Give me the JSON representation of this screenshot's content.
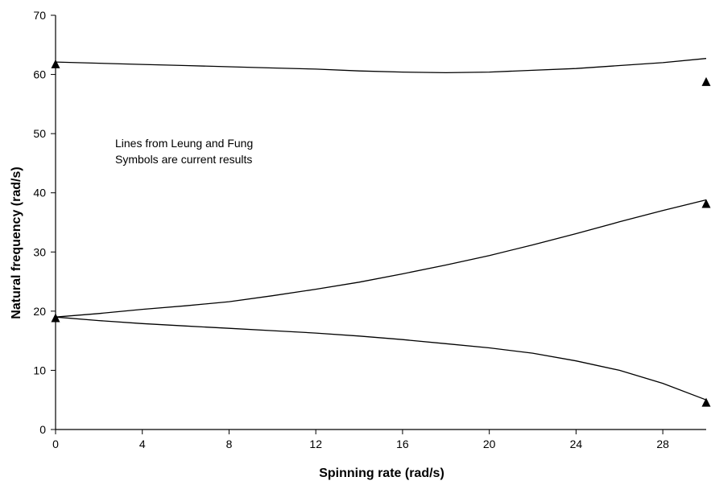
{
  "chart_data": {
    "type": "line",
    "title": "",
    "xlabel": "Spinning rate (rad/s)",
    "ylabel": "Natural frequency (rad/s)",
    "xlim": [
      0,
      30
    ],
    "ylim": [
      0,
      70
    ],
    "x_ticks": [
      0,
      4,
      8,
      12,
      16,
      20,
      24,
      28
    ],
    "y_ticks": [
      0,
      10,
      20,
      30,
      40,
      50,
      60,
      70
    ],
    "grid": false,
    "legend": "none",
    "annotations": [
      "Lines from Leung and Fung",
      "Symbols are current results"
    ],
    "series": [
      {
        "style": "line",
        "x": [
          0,
          2,
          4,
          6,
          8,
          10,
          12,
          14,
          16,
          18,
          20,
          22,
          24,
          26,
          28,
          30
        ],
        "y": [
          62.1,
          61.9,
          61.7,
          61.5,
          61.3,
          61.1,
          60.9,
          60.6,
          60.4,
          60.3,
          60.4,
          60.7,
          61.0,
          61.5,
          62.0,
          62.7
        ]
      },
      {
        "style": "line",
        "x": [
          0,
          2,
          4,
          6,
          8,
          10,
          12,
          14,
          16,
          18,
          20,
          22,
          24,
          26,
          28,
          30
        ],
        "y": [
          19.0,
          19.6,
          20.3,
          20.9,
          21.6,
          22.6,
          23.7,
          24.9,
          26.3,
          27.8,
          29.4,
          31.2,
          33.1,
          35.1,
          37.0,
          38.8
        ]
      },
      {
        "style": "line",
        "x": [
          0,
          2,
          4,
          6,
          8,
          10,
          12,
          14,
          16,
          18,
          20,
          22,
          24,
          26,
          28,
          30
        ],
        "y": [
          19.0,
          18.4,
          17.9,
          17.5,
          17.1,
          16.7,
          16.3,
          15.8,
          15.2,
          14.5,
          13.8,
          12.9,
          11.6,
          10.0,
          7.8,
          5.0
        ]
      },
      {
        "style": "markers",
        "marker": "triangle",
        "x": [
          0,
          0,
          30,
          30,
          30
        ],
        "y": [
          61.8,
          18.9,
          58.8,
          38.2,
          4.6
        ]
      }
    ]
  }
}
